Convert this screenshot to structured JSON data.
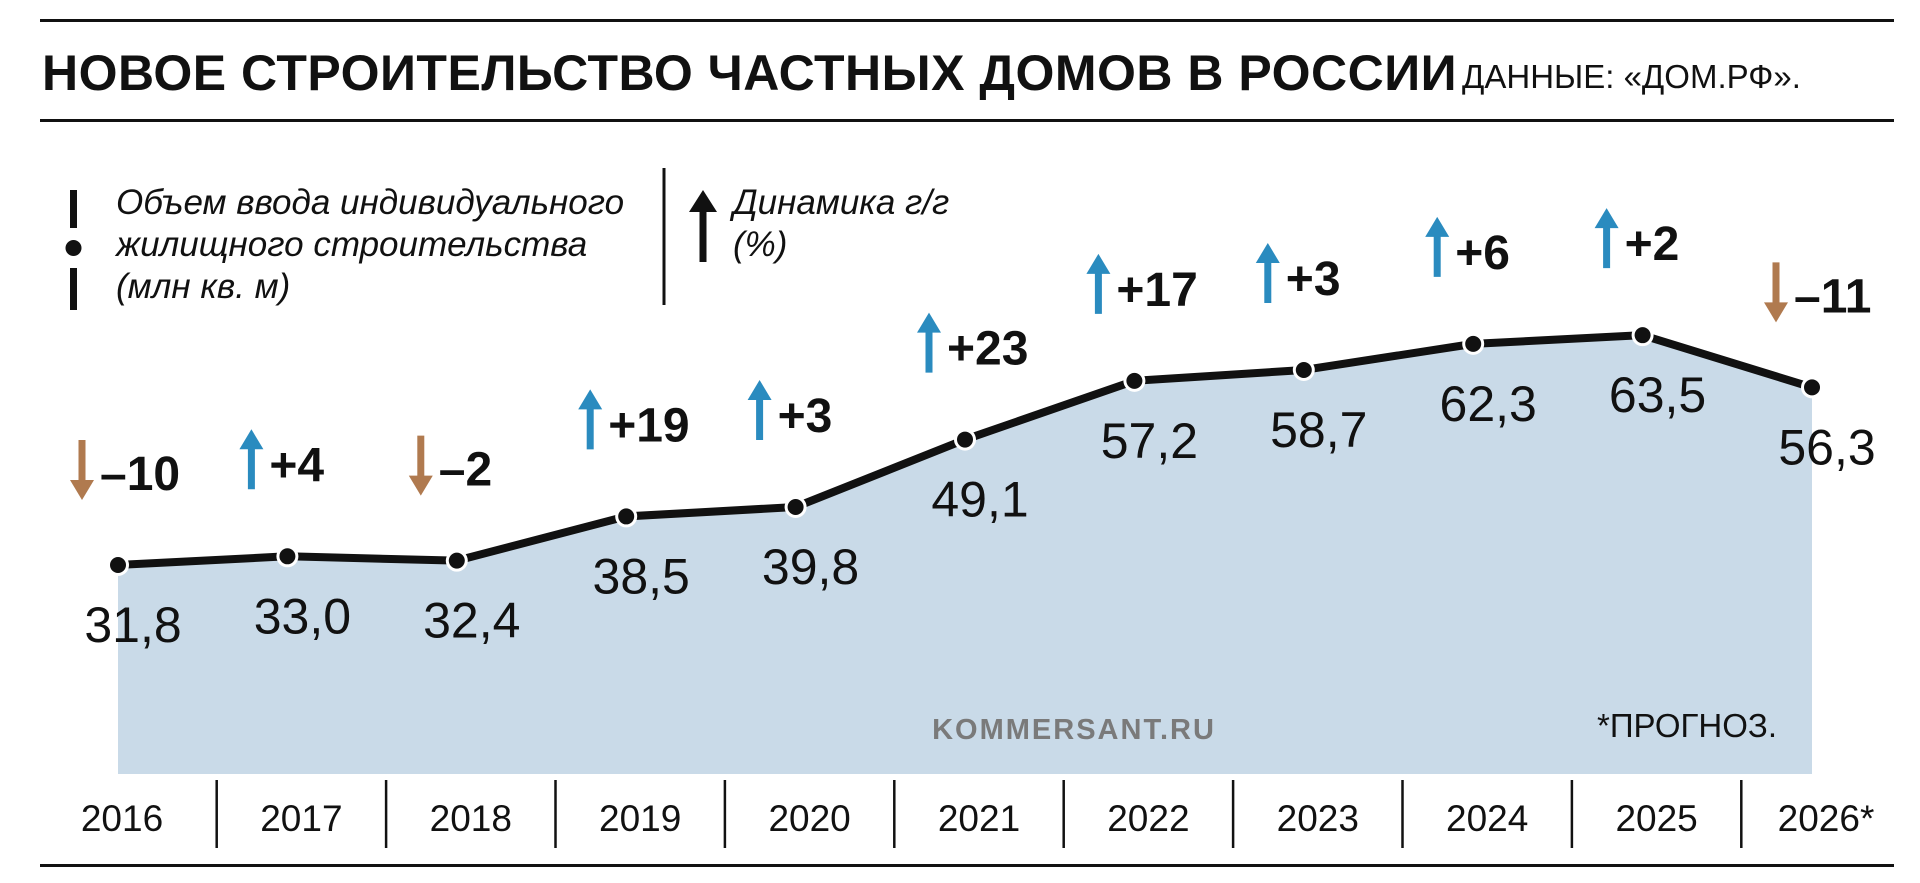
{
  "title": "НОВОЕ СТРОИТЕЛЬСТВО ЧАСТНЫХ ДОМОВ В РОССИИ",
  "source": "ДАННЫЕ: «ДОМ.РФ».",
  "legend": {
    "volume": "Объем ввода индивидуального жилищного строительства (млн кв. м)",
    "dynamics": "Динамика г/г (%)"
  },
  "watermark": "KOMMERSANT.RU",
  "footnote": "*ПРОГНОЗ.",
  "colors": {
    "area": "#c9dae8",
    "line": "#111111",
    "up": "#2a8bbf",
    "down": "#b07a4f"
  },
  "chart_data": {
    "type": "area",
    "categories": [
      "2016",
      "2017",
      "2018",
      "2019",
      "2020",
      "2021",
      "2022",
      "2023",
      "2024",
      "2025",
      "2026*"
    ],
    "values": [
      31.8,
      33.0,
      32.4,
      38.5,
      39.8,
      49.1,
      57.2,
      58.7,
      62.3,
      63.5,
      56.3
    ],
    "value_labels": [
      "31,8",
      "33,0",
      "32,4",
      "38,5",
      "39,8",
      "49,1",
      "57,2",
      "58,7",
      "62,3",
      "63,5",
      "56,3"
    ],
    "changes": [
      -10,
      4,
      -2,
      19,
      3,
      23,
      17,
      3,
      6,
      2,
      -11
    ],
    "change_labels": [
      "–10",
      "+4",
      "–2",
      "+19",
      "+3",
      "+23",
      "+17",
      "+3",
      "+6",
      "+2",
      "–11"
    ],
    "grid": false
  }
}
